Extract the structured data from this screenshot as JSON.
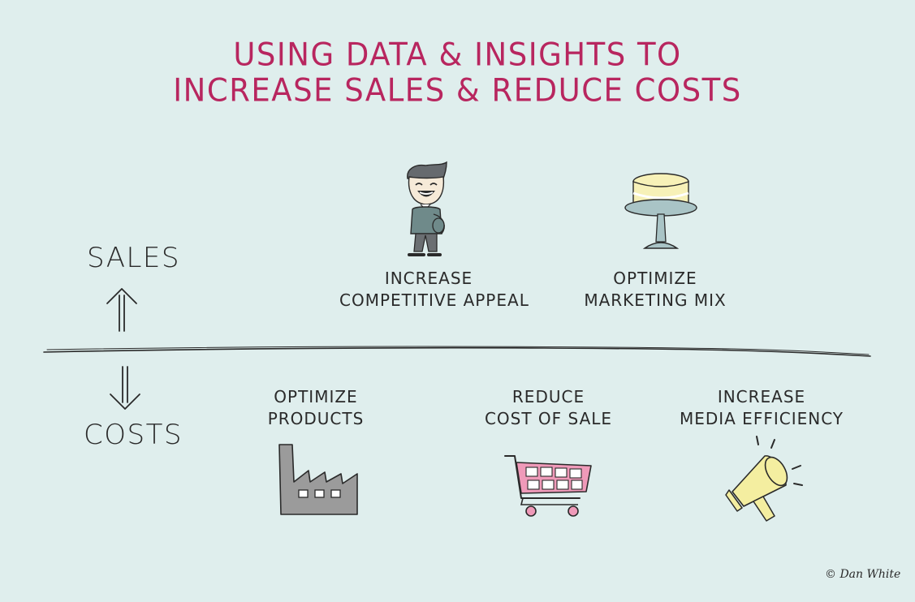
{
  "title": {
    "line1": "USING DATA & INSIGHTS TO",
    "line2": "INCREASE SALES & REDUCE COSTS"
  },
  "axis": {
    "sales_label": "SALES",
    "costs_label": "COSTS",
    "sales_arrow_icon": "double-arrow-up-icon",
    "costs_arrow_icon": "double-arrow-down-icon"
  },
  "sales_items": [
    {
      "line1": "INCREASE",
      "line2": "COMPETITIVE APPEAL",
      "icon": "smiling-man-icon"
    },
    {
      "line1": "OPTIMIZE",
      "line2": "MARKETING MIX",
      "icon": "cake-stand-icon"
    }
  ],
  "cost_items": [
    {
      "line1": "OPTIMIZE",
      "line2": "PRODUCTS",
      "icon": "factory-icon"
    },
    {
      "line1": "REDUCE",
      "line2": "COST OF SALE",
      "icon": "shopping-cart-icon"
    },
    {
      "line1": "INCREASE",
      "line2": "MEDIA EFFICIENCY",
      "icon": "megaphone-icon"
    }
  ],
  "credit": "© Dan White",
  "colors": {
    "background": "#dfeeed",
    "title": "#b8265f",
    "text": "#2a2a2a",
    "cart": "#ef9ab9",
    "factory": "#9b9b9b",
    "cake": "#f7f1b8",
    "stand": "#a9c4c6",
    "megaphone": "#f4eea0"
  }
}
